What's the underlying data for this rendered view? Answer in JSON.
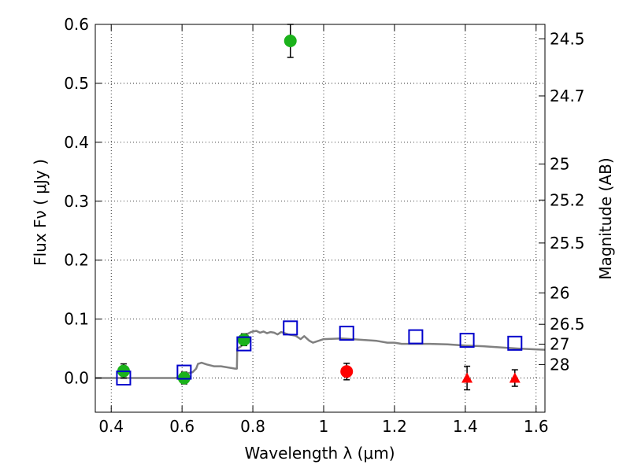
{
  "chart_data": {
    "type": "scatter",
    "xlabel": "Wavelength  λ (μm)",
    "ylabel": "Flux  Fν  ( μJy )",
    "y2label": "Magnitude (AB)",
    "xlim": [
      0.355,
      1.625
    ],
    "ylim": [
      -0.058,
      0.6
    ],
    "grid": true,
    "x_ticks": [
      0.4,
      0.6,
      0.8,
      1.0,
      1.2,
      1.4,
      1.6
    ],
    "x_tick_labels": [
      "0.4",
      "0.6",
      "0.8",
      "1",
      "1.2",
      "1.4",
      "1.6"
    ],
    "y_ticks": [
      0.0,
      0.1,
      0.2,
      0.3,
      0.4,
      0.5,
      0.6
    ],
    "y_tick_labels": [
      "0.0",
      "0.1",
      "0.2",
      "0.3",
      "0.4",
      "0.5",
      "0.6"
    ],
    "y2_ticks": [
      {
        "label": "24.5",
        "flux": 0.5754
      },
      {
        "label": "24.7",
        "flux": 0.4786
      },
      {
        "label": "25",
        "flux": 0.3631
      },
      {
        "label": "25.2",
        "flux": 0.302
      },
      {
        "label": "25.5",
        "flux": 0.2291
      },
      {
        "label": "26",
        "flux": 0.1445
      },
      {
        "label": "26.5",
        "flux": 0.0912
      },
      {
        "label": "27",
        "flux": 0.0575
      },
      {
        "label": "28",
        "flux": 0.0229
      }
    ],
    "model_sed": {
      "color": "#808080",
      "points": [
        [
          0.355,
          0.0
        ],
        [
          0.58,
          0.0
        ],
        [
          0.6,
          0.002
        ],
        [
          0.615,
          0.008
        ],
        [
          0.63,
          0.01
        ],
        [
          0.64,
          0.016
        ],
        [
          0.645,
          0.024
        ],
        [
          0.655,
          0.026
        ],
        [
          0.67,
          0.023
        ],
        [
          0.69,
          0.02
        ],
        [
          0.71,
          0.02
        ],
        [
          0.73,
          0.018
        ],
        [
          0.75,
          0.016
        ],
        [
          0.755,
          0.016
        ],
        [
          0.756,
          0.05
        ],
        [
          0.765,
          0.053
        ],
        [
          0.78,
          0.062
        ],
        [
          0.785,
          0.075
        ],
        [
          0.795,
          0.078
        ],
        [
          0.8,
          0.079
        ],
        [
          0.81,
          0.08
        ],
        [
          0.82,
          0.077
        ],
        [
          0.83,
          0.079
        ],
        [
          0.84,
          0.076
        ],
        [
          0.85,
          0.078
        ],
        [
          0.86,
          0.077
        ],
        [
          0.87,
          0.074
        ],
        [
          0.88,
          0.078
        ],
        [
          0.9,
          0.074
        ],
        [
          0.92,
          0.072
        ],
        [
          0.935,
          0.066
        ],
        [
          0.945,
          0.071
        ],
        [
          0.96,
          0.063
        ],
        [
          0.97,
          0.06
        ],
        [
          0.985,
          0.063
        ],
        [
          1.0,
          0.066
        ],
        [
          1.05,
          0.067
        ],
        [
          1.1,
          0.065
        ],
        [
          1.15,
          0.063
        ],
        [
          1.18,
          0.06
        ],
        [
          1.2,
          0.06
        ],
        [
          1.22,
          0.058
        ],
        [
          1.3,
          0.058
        ],
        [
          1.35,
          0.057
        ],
        [
          1.4,
          0.055
        ],
        [
          1.45,
          0.054
        ],
        [
          1.5,
          0.052
        ],
        [
          1.55,
          0.05
        ],
        [
          1.625,
          0.048
        ]
      ]
    },
    "series": [
      {
        "marker": "circle",
        "color": "#1bb21b",
        "points": [
          {
            "x": 0.435,
            "y": 0.012,
            "yerr": 0.012
          },
          {
            "x": 0.606,
            "y": 0.0,
            "yerr": 0.01
          },
          {
            "x": 0.775,
            "y": 0.065,
            "yerr": 0.01
          },
          {
            "x": 0.906,
            "y": 0.572,
            "yerr": 0.028
          }
        ]
      },
      {
        "marker": "circle",
        "color": "#ff0000",
        "points": [
          {
            "x": 1.065,
            "y": 0.011,
            "yerr": 0.014
          }
        ]
      },
      {
        "marker": "triangle",
        "color": "#ff0000",
        "points": [
          {
            "x": 1.405,
            "y": 0.0,
            "yerr": 0.02
          },
          {
            "x": 1.54,
            "y": 0.0,
            "yerr": 0.014
          }
        ]
      },
      {
        "marker": "square",
        "color": "#0000cc",
        "points": [
          {
            "x": 0.435,
            "y": 0.0
          },
          {
            "x": 0.606,
            "y": 0.01
          },
          {
            "x": 0.775,
            "y": 0.058
          },
          {
            "x": 0.906,
            "y": 0.085
          },
          {
            "x": 1.065,
            "y": 0.076
          },
          {
            "x": 1.26,
            "y": 0.07
          },
          {
            "x": 1.405,
            "y": 0.064
          },
          {
            "x": 1.54,
            "y": 0.059
          }
        ]
      }
    ]
  }
}
